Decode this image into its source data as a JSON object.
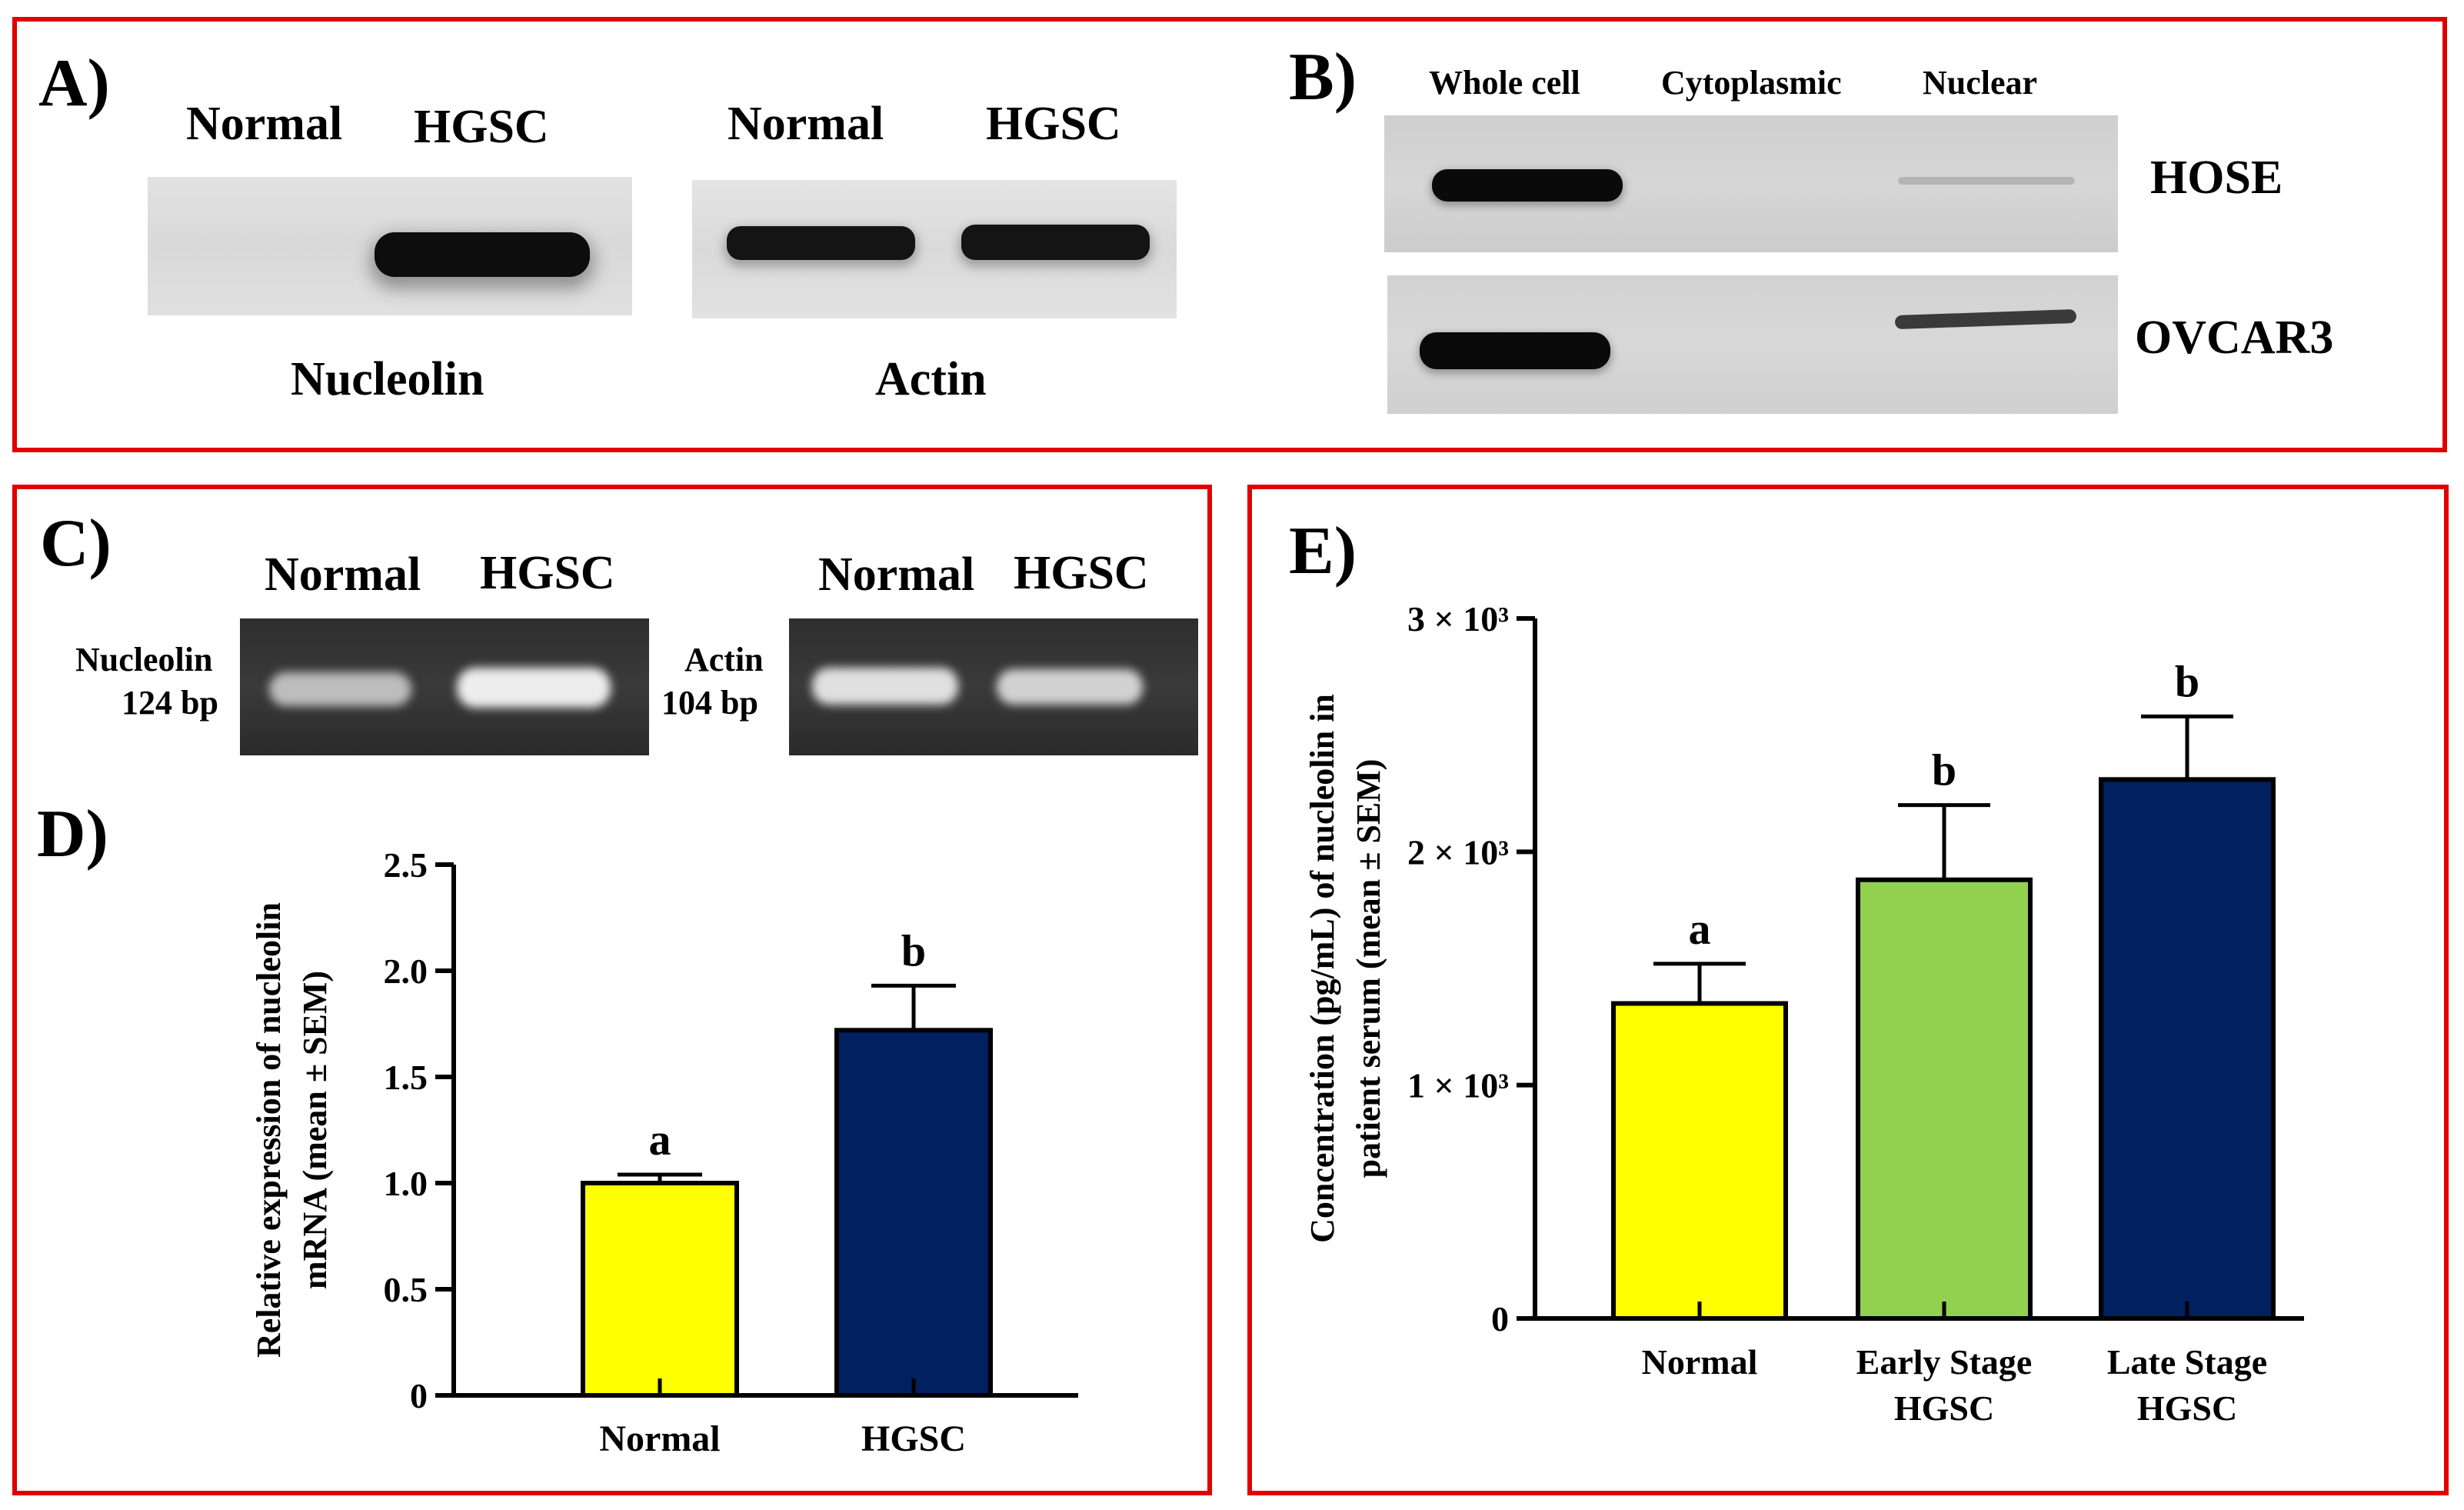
{
  "panels": {
    "A": {
      "label": "A)",
      "blot1": {
        "lanes": [
          "Normal",
          "HGSC"
        ],
        "caption": "Nucleolin"
      },
      "blot2": {
        "lanes": [
          "Normal",
          "HGSC"
        ],
        "caption": "Actin"
      }
    },
    "B": {
      "label": "B)",
      "columns": [
        "Whole cell",
        "Cytoplasmic",
        "Nuclear"
      ],
      "rows": [
        "HOSE",
        "OVCAR3"
      ]
    },
    "C": {
      "label": "C)",
      "gel1": {
        "lanes": [
          "Normal",
          "HGSC"
        ],
        "label_line1": "Nucleolin",
        "label_line2": "124 bp"
      },
      "gel2": {
        "lanes": [
          "Normal",
          "HGSC"
        ],
        "label_line1": "Actin",
        "label_line2": "104 bp"
      }
    },
    "D": {
      "label": "D)"
    },
    "E": {
      "label": "E)"
    }
  },
  "chart_data": [
    {
      "id": "D",
      "type": "bar",
      "categories": [
        "Normal",
        "HGSC"
      ],
      "values": [
        1.0,
        1.72
      ],
      "errors": [
        0.04,
        0.21
      ],
      "significance": [
        "a",
        "b"
      ],
      "colors": [
        "#ffff00",
        "#002060"
      ],
      "ylabel_line1": "Relative expression of nucleolin",
      "ylabel_line2": "mRNA (mean ± SEM)",
      "ylim": [
        0,
        2.5
      ],
      "yticks": [
        0,
        0.5,
        1.0,
        1.5,
        2.0,
        2.5
      ],
      "ytick_labels": [
        "0",
        "0.5",
        "1.0",
        "1.5",
        "2.0",
        "2.5"
      ],
      "grid": false
    },
    {
      "id": "E",
      "type": "bar",
      "categories": [
        "Normal",
        "Early Stage HGSC",
        "Late Stage HGSC"
      ],
      "category_lines": [
        [
          "Normal"
        ],
        [
          "Early Stage",
          "HGSC"
        ],
        [
          "Late Stage",
          "HGSC"
        ]
      ],
      "values": [
        1350,
        1880,
        2310
      ],
      "errors": [
        170,
        320,
        270
      ],
      "significance": [
        "a",
        "b",
        "b"
      ],
      "colors": [
        "#ffff00",
        "#92d050",
        "#002060"
      ],
      "ylabel_line1": "Concentration (pg/mL) of nucleolin in",
      "ylabel_line2": "patient serum (mean ± SEM)",
      "ylim": [
        0,
        3000
      ],
      "yticks": [
        0,
        1000,
        2000,
        3000
      ],
      "ytick_labels": [
        "0",
        "1 × 10³",
        "2 × 10³",
        "3 × 10³"
      ],
      "grid": false
    }
  ]
}
